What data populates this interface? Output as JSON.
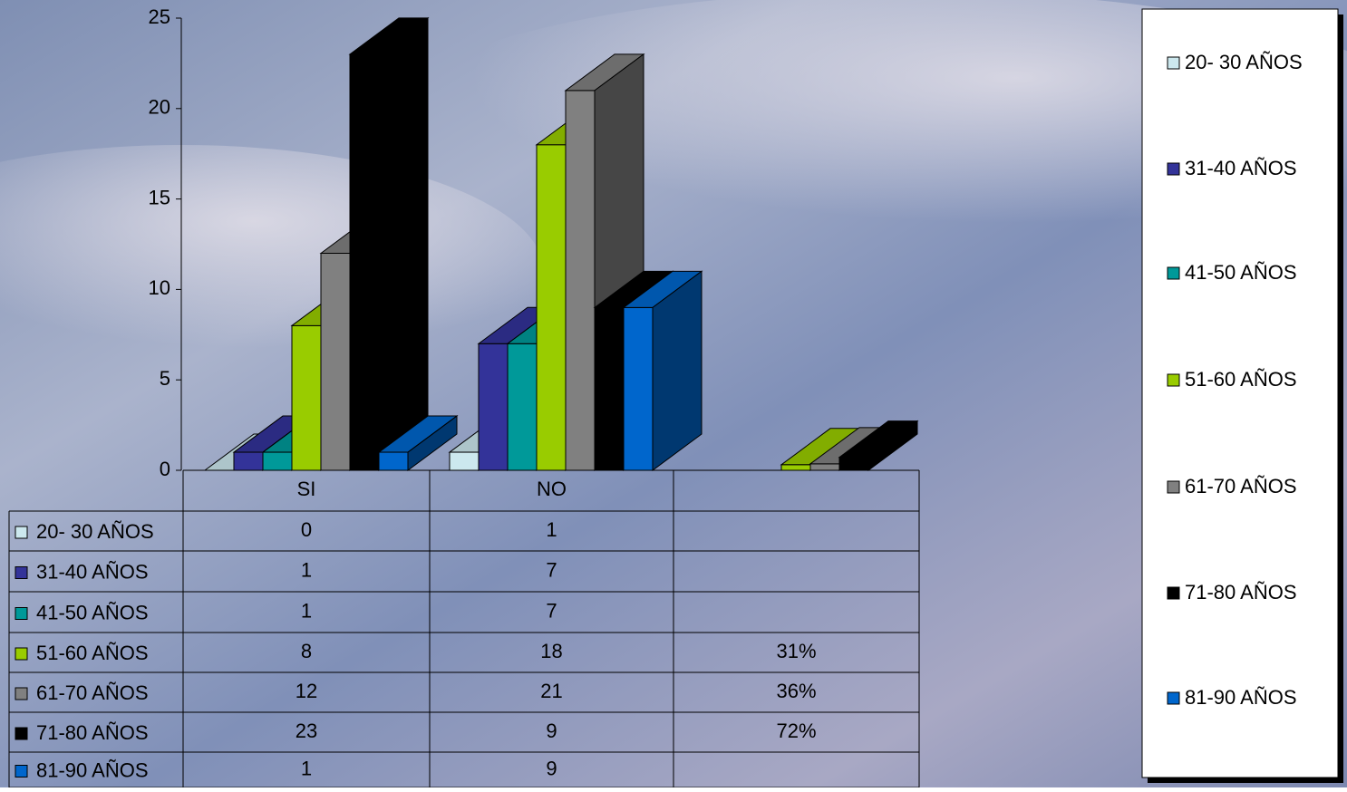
{
  "chart_data": {
    "type": "bar3d",
    "categories": [
      "SI",
      "NO",
      null
    ],
    "series": [
      {
        "name": "20- 30 AÑOS",
        "color": "#cce8ee",
        "values": [
          0,
          1,
          null
        ]
      },
      {
        "name": "31-40 AÑOS",
        "color": "#333399",
        "values": [
          1,
          7,
          null
        ]
      },
      {
        "name": "41-50 AÑOS",
        "color": "#009999",
        "values": [
          1,
          7,
          null
        ]
      },
      {
        "name": "51-60 AÑOS",
        "color": "#99cc00",
        "values": [
          8,
          18,
          0.31
        ],
        "value_labels": [
          "8",
          "18",
          "31%"
        ]
      },
      {
        "name": "61-70 AÑOS",
        "color": "#808080",
        "values": [
          12,
          21,
          0.36
        ],
        "value_labels": [
          "12",
          "21",
          "36%"
        ]
      },
      {
        "name": "71-80 AÑOS",
        "color": "#000000",
        "values": [
          23,
          9,
          0.72
        ],
        "value_labels": [
          "23",
          "9",
          "72%"
        ]
      },
      {
        "name": "81-90 AÑOS",
        "color": "#0066cc",
        "values": [
          1,
          9,
          null
        ]
      }
    ],
    "ylim": [
      0,
      25
    ],
    "yticks": [
      0,
      5,
      10,
      15,
      20,
      25
    ],
    "grid": false,
    "legend": "right",
    "data_table": true
  }
}
